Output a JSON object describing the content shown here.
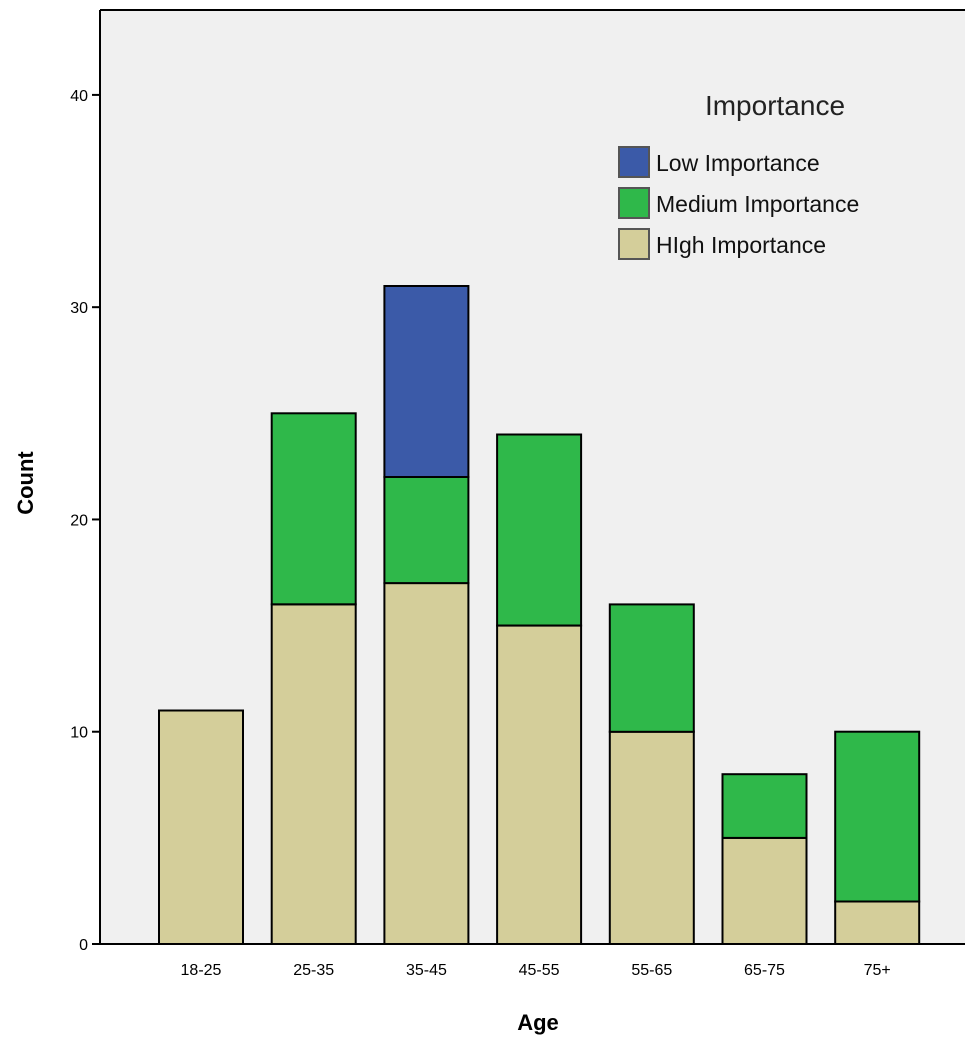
{
  "chart_data": {
    "type": "bar",
    "stacked": true,
    "title": "",
    "xlabel": "Age",
    "ylabel": "Count",
    "categories": [
      "18-25",
      "25-35",
      "35-45",
      "45-55",
      "55-65",
      "65-75",
      "75+"
    ],
    "ylim": [
      0,
      44
    ],
    "yticks": [
      0,
      10,
      20,
      30,
      40
    ],
    "grid": false,
    "legend": {
      "title": "Importance",
      "position": "top-right"
    },
    "series": [
      {
        "name": "High Importance",
        "color": "#d4ce9a",
        "values": [
          11,
          16,
          17,
          15,
          10,
          5,
          2
        ]
      },
      {
        "name": "Medium Importance",
        "color": "#2fb84a",
        "values": [
          0,
          9,
          5,
          9,
          6,
          3,
          8
        ]
      },
      {
        "name": "Low Importance",
        "color": "#3b5aa8",
        "values": [
          0,
          0,
          9,
          0,
          0,
          0,
          0
        ]
      }
    ],
    "legend_order": [
      "Low Importance",
      "Medium Importance",
      "High Importance"
    ],
    "legend_display_labels": {
      "High Importance": "HIgh Importance"
    },
    "plot_background": "#f0f0f0"
  }
}
